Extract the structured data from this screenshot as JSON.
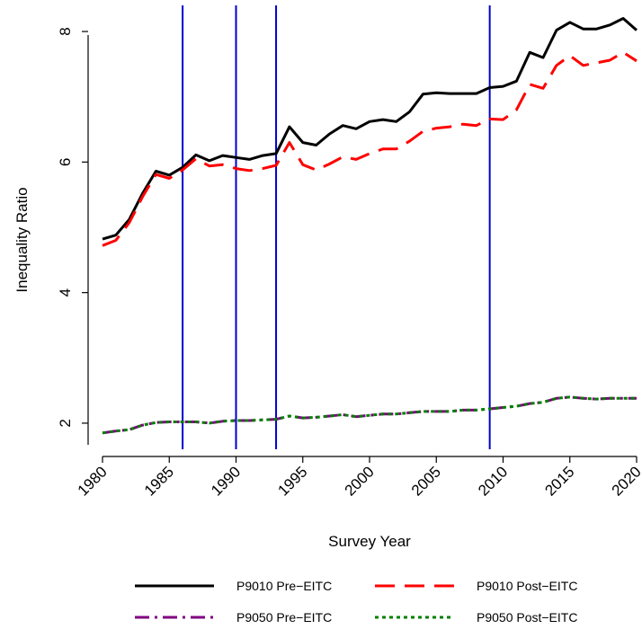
{
  "chart_data": {
    "type": "line",
    "xlabel": "Survey Year",
    "ylabel": "Inequality Ratio",
    "xlim": [
      1980,
      2020
    ],
    "ylim": [
      1.6,
      8.4
    ],
    "xticks": [
      1980,
      1985,
      1990,
      1995,
      2000,
      2005,
      2010,
      2015,
      2020
    ],
    "yticks": [
      2,
      4,
      6,
      8
    ],
    "grid": false,
    "legend_position": "bottom",
    "vlines": {
      "color": "#0000cc",
      "x": [
        1986,
        1990,
        1993,
        2009
      ]
    },
    "x": [
      1980,
      1981,
      1982,
      1983,
      1984,
      1985,
      1986,
      1987,
      1988,
      1989,
      1990,
      1991,
      1992,
      1993,
      1994,
      1995,
      1996,
      1997,
      1998,
      1999,
      2000,
      2001,
      2002,
      2003,
      2004,
      2005,
      2006,
      2007,
      2008,
      2009,
      2010,
      2011,
      2012,
      2013,
      2014,
      2015,
      2016,
      2017,
      2018,
      2019,
      2020
    ],
    "series": [
      {
        "name": "P9010 Pre−EITC",
        "color": "#000000",
        "dash": "solid",
        "values": [
          4.82,
          4.88,
          5.12,
          5.52,
          5.86,
          5.8,
          5.92,
          6.11,
          6.02,
          6.1,
          6.07,
          6.04,
          6.1,
          6.13,
          6.54,
          6.3,
          6.26,
          6.43,
          6.56,
          6.51,
          6.62,
          6.65,
          6.62,
          6.77,
          7.04,
          7.06,
          7.05,
          7.05,
          7.05,
          7.14,
          7.16,
          7.24,
          7.68,
          7.6,
          8.02,
          8.14,
          8.04,
          8.04,
          8.1,
          8.2,
          8.02
        ]
      },
      {
        "name": "P9010 Post−EITC",
        "color": "#ff0000",
        "dash": "long-dash",
        "values": [
          4.72,
          4.8,
          5.07,
          5.47,
          5.81,
          5.75,
          5.88,
          6.05,
          5.94,
          5.96,
          5.9,
          5.87,
          5.9,
          5.95,
          6.3,
          5.96,
          5.88,
          5.97,
          6.08,
          6.04,
          6.13,
          6.2,
          6.2,
          6.32,
          6.47,
          6.52,
          6.54,
          6.58,
          6.56,
          6.66,
          6.65,
          6.8,
          7.19,
          7.13,
          7.48,
          7.63,
          7.48,
          7.52,
          7.56,
          7.68,
          7.55
        ]
      },
      {
        "name": "P9050 Pre−EITC",
        "color": "#800080",
        "dash": "dash-dot",
        "values": [
          1.85,
          1.88,
          1.9,
          1.97,
          2.01,
          2.02,
          2.02,
          2.02,
          2.0,
          2.03,
          2.04,
          2.04,
          2.05,
          2.06,
          2.11,
          2.08,
          2.09,
          2.11,
          2.13,
          2.1,
          2.12,
          2.14,
          2.14,
          2.16,
          2.18,
          2.18,
          2.18,
          2.2,
          2.2,
          2.22,
          2.24,
          2.26,
          2.3,
          2.32,
          2.38,
          2.4,
          2.38,
          2.37,
          2.38,
          2.38,
          2.38
        ]
      },
      {
        "name": "P9050 Post−EITC",
        "color": "#008000",
        "dash": "dotted",
        "values": [
          1.85,
          1.88,
          1.9,
          1.97,
          2.01,
          2.02,
          2.02,
          2.02,
          2.0,
          2.03,
          2.04,
          2.04,
          2.05,
          2.06,
          2.11,
          2.08,
          2.09,
          2.11,
          2.13,
          2.1,
          2.12,
          2.14,
          2.14,
          2.16,
          2.18,
          2.18,
          2.18,
          2.2,
          2.2,
          2.22,
          2.24,
          2.26,
          2.3,
          2.32,
          2.38,
          2.4,
          2.38,
          2.37,
          2.38,
          2.38,
          2.38
        ]
      }
    ]
  }
}
